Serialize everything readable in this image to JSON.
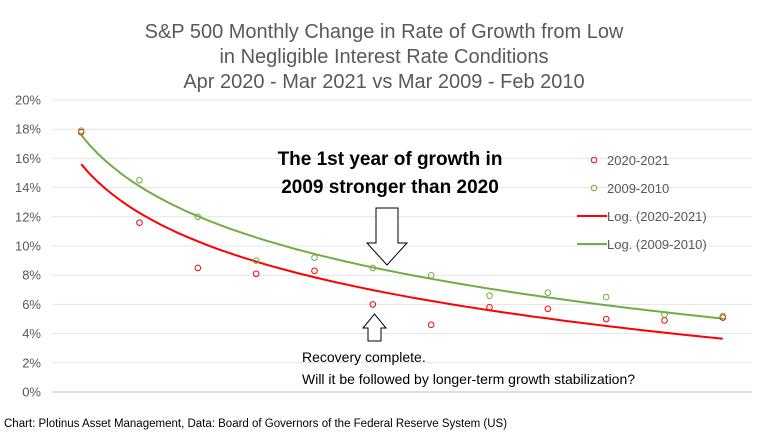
{
  "chart_data": {
    "type": "scatter",
    "title_lines": [
      "S&P 500 Monthly Change in Rate of Growth from Low",
      "in Negligible Interest Rate Conditions",
      "Apr 2020 - Mar 2021 vs Mar 2009 - Feb 2010"
    ],
    "xlabel": "",
    "ylabel": "",
    "ylim": [
      0,
      20
    ],
    "y_ticks": [
      "0%",
      "2%",
      "4%",
      "6%",
      "8%",
      "10%",
      "12%",
      "14%",
      "16%",
      "18%",
      "20%"
    ],
    "x": [
      1,
      2,
      3,
      4,
      5,
      6,
      7,
      8,
      9,
      10,
      11,
      12
    ],
    "series": [
      {
        "name": "2020-2021",
        "color": "#ff0000",
        "values": [
          17.8,
          11.6,
          8.5,
          8.1,
          8.3,
          6.0,
          4.6,
          5.8,
          5.7,
          5.0,
          4.9,
          5.1
        ],
        "trend_name": "Log. (2020-2021)",
        "trend": {
          "a": 15.6,
          "b": -4.81
        }
      },
      {
        "name": "2009-2010",
        "color": "#70ad47",
        "values": [
          17.9,
          14.5,
          12.0,
          9.0,
          9.2,
          8.5,
          8.0,
          6.6,
          6.8,
          6.5,
          5.3,
          5.2
        ],
        "trend_name": "Log. (2009-2010)",
        "trend": {
          "a": 17.6,
          "b": -5.06
        }
      }
    ],
    "legend_position": "right",
    "annotations": {
      "top_line1": "The 1st year of growth in",
      "top_line2": "2009 stronger than 2020",
      "bottom_line1": "Recovery complete.",
      "bottom_line2": "Will it be followed by longer-term growth stabilization?"
    },
    "source": "Chart: Plotinus Asset Management, Data: Board of Governors of the  Federal Reserve System (US)"
  }
}
